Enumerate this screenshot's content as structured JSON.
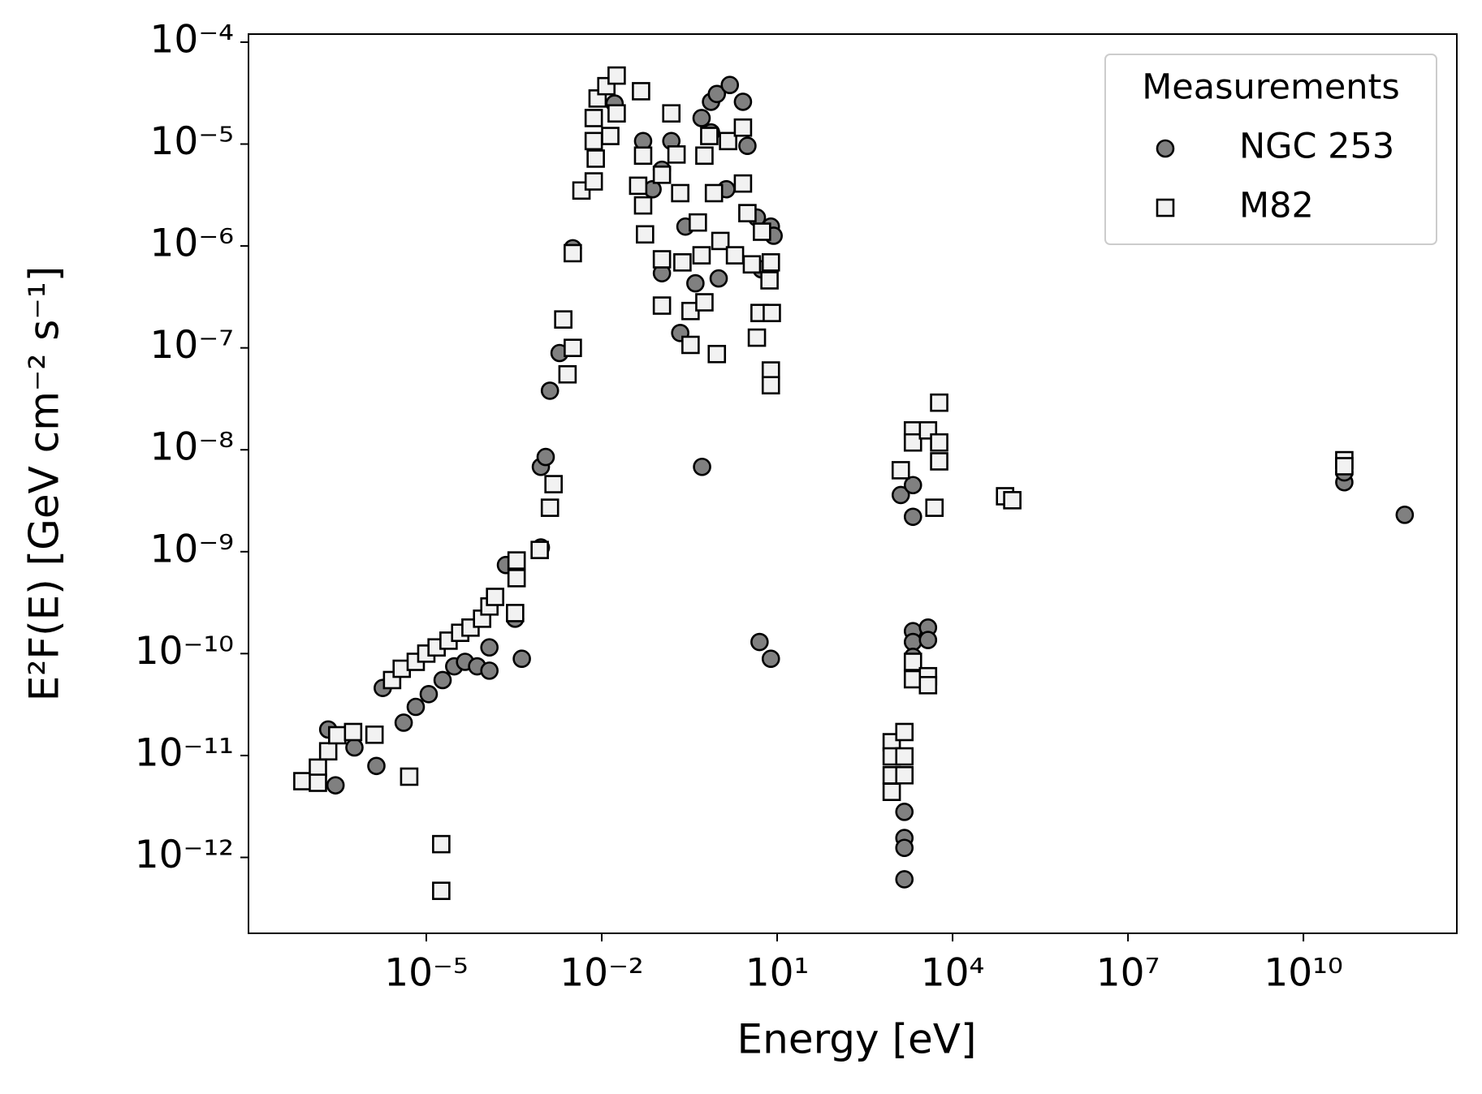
{
  "chart_data": {
    "type": "scatter",
    "xlabel": "Energy [eV]",
    "ylabel": "E²F(E) [GeV cm⁻² s⁻¹]",
    "xscale": "log",
    "yscale": "log",
    "xlim": [
      9.1e-09,
      4200000000000.0
    ],
    "ylim": [
      1.8e-13,
      0.00012
    ],
    "xticks": [
      {
        "value": 1e-05,
        "label": "10⁻⁵"
      },
      {
        "value": 0.01,
        "label": "10⁻²"
      },
      {
        "value": 10,
        "label": "10¹"
      },
      {
        "value": 10000.0,
        "label": "10⁴"
      },
      {
        "value": 10000000.0,
        "label": "10⁷"
      },
      {
        "value": 10000000000.0,
        "label": "10¹⁰"
      }
    ],
    "yticks": [
      {
        "value": 1e-12,
        "label": "10⁻¹²"
      },
      {
        "value": 1e-11,
        "label": "10⁻¹¹"
      },
      {
        "value": 1e-10,
        "label": "10⁻¹⁰"
      },
      {
        "value": 1e-09,
        "label": "10⁻⁹"
      },
      {
        "value": 1e-08,
        "label": "10⁻⁸"
      },
      {
        "value": 1e-07,
        "label": "10⁻⁷"
      },
      {
        "value": 1e-06,
        "label": "10⁻⁶"
      },
      {
        "value": 1e-05,
        "label": "10⁻⁵"
      },
      {
        "value": 0.0001,
        "label": "10⁻⁴"
      }
    ],
    "legend": "upper right",
    "legend_title": "Measurements",
    "series": [
      {
        "name": "NGC 253",
        "marker": "circle",
        "color": "#808080",
        "x": [
          2.1e-07,
          2.8e-07,
          5.9e-07,
          1.4e-06,
          1.8e-06,
          4.1e-06,
          6.6e-06,
          1.1e-05,
          1.9e-05,
          3e-05,
          4.6e-05,
          7.4e-05,
          0.00012,
          0.00012,
          0.00023,
          0.00033,
          0.00043,
          0.00091,
          0.00091,
          0.0011,
          0.0013,
          0.0019,
          0.0032,
          0.051,
          0.074,
          0.107,
          0.155,
          0.22,
          0.27,
          0.51,
          0.52,
          0.74,
          0.93,
          1.55,
          2.6,
          1.0,
          1.35,
          3.1,
          4.5,
          5.4,
          7.8,
          8.7,
          5.0,
          7.8,
          0.107,
          0.0166,
          0.4,
          0.74,
          1300,
          2100,
          2100,
          1500,
          1500,
          1500,
          1500,
          2100,
          3800,
          2100,
          2100,
          3800,
          50000000000.0,
          50000000000.0,
          540000000000.0
        ],
        "values": [
          1.8e-11,
          5.1e-12,
          1.2e-11,
          7.9e-12,
          4.6e-11,
          2.1e-11,
          3e-11,
          4e-11,
          5.5e-11,
          7.5e-11,
          8.3e-11,
          7.5e-11,
          6.8e-11,
          1.15e-10,
          7.4e-10,
          2.2e-10,
          8.9e-11,
          1.1e-09,
          6.8e-09,
          8.5e-09,
          3.8e-08,
          8.9e-08,
          9.5e-07,
          1.07e-05,
          3.6e-06,
          5.4e-07,
          1.07e-05,
          1.4e-07,
          1.55e-06,
          1.8e-05,
          6.8e-09,
          2.6e-05,
          3.1e-05,
          3.8e-05,
          2.6e-05,
          4.8e-07,
          3.6e-06,
          9.6e-06,
          1.9e-06,
          5.9e-07,
          1.55e-06,
          1.26e-06,
          1.3e-10,
          8.9e-11,
          5.6e-06,
          2.5e-05,
          4.3e-07,
          1.3e-05,
          3.6e-09,
          4.5e-09,
          2.2e-09,
          2.8e-12,
          1.55e-12,
          1.24e-12,
          6.1e-13,
          1.66e-10,
          1.8e-10,
          1.3e-10,
          9.3e-11,
          1.36e-10,
          4.8e-09,
          6e-09,
          2.3e-09
        ]
      },
      {
        "name": "M82",
        "marker": "square",
        "color": "#f2f2f2",
        "x": [
          7.6e-08,
          1.4e-07,
          1.4e-07,
          2.1e-07,
          3e-07,
          5.6e-07,
          1.3e-06,
          2.6e-06,
          3.8e-06,
          5.1e-06,
          6.6e-06,
          1e-05,
          1.5e-05,
          1.8e-05,
          1.8e-05,
          2.4e-05,
          3.8e-05,
          5.7e-05,
          9e-05,
          0.00012,
          0.00015,
          0.00033,
          0.00035,
          0.00035,
          0.00087,
          0.0013,
          0.0015,
          0.0026,
          0.0022,
          0.0032,
          0.0032,
          0.0045,
          0.0073,
          0.0079,
          0.0073,
          0.0073,
          0.0085,
          0.014,
          0.012,
          0.018,
          0.018,
          0.047,
          0.042,
          0.051,
          0.051,
          0.055,
          0.107,
          0.107,
          0.107,
          0.155,
          0.19,
          0.22,
          0.24,
          0.33,
          0.33,
          0.44,
          0.51,
          0.57,
          0.57,
          0.69,
          0.83,
          0.93,
          1.07,
          1.45,
          1.9,
          2.6,
          2.6,
          3.1,
          3.7,
          4.5,
          5.0,
          5.5,
          7.4,
          7.8,
          7.8,
          8.1,
          7.8,
          1300,
          2100,
          2100,
          3800,
          5900,
          5900,
          5900,
          4900,
          910,
          910,
          910,
          910,
          1500,
          1500,
          1500,
          2100,
          2100,
          3800,
          3800,
          79000.0,
          105000.0,
          50000000000.0,
          50000000000.0
        ],
        "values": [
          5.6e-12,
          7.6e-12,
          5.4e-12,
          1.1e-11,
          1.58e-11,
          1.7e-11,
          1.6e-11,
          5.5e-11,
          7.1e-11,
          6.2e-12,
          8.3e-11,
          1e-10,
          1.15e-10,
          1.35e-12,
          4.7e-13,
          1.34e-10,
          1.6e-10,
          1.8e-10,
          2.2e-10,
          2.9e-10,
          3.6e-10,
          2.5e-10,
          5.5e-10,
          8.2e-10,
          1.04e-09,
          2.7e-09,
          4.6e-09,
          5.5e-08,
          1.9e-07,
          1e-07,
          8.5e-07,
          3.5e-06,
          4.3e-06,
          7.2e-06,
          1.07e-05,
          1.8e-05,
          2.8e-05,
          1.2e-05,
          3.7e-05,
          4.7e-05,
          2e-05,
          3.3e-05,
          3.9e-06,
          7.7e-06,
          2.5e-06,
          1.3e-06,
          7.4e-07,
          2.6e-07,
          5e-06,
          2e-05,
          7.9e-06,
          3.3e-06,
          6.9e-07,
          2.3e-07,
          1.07e-07,
          1.7e-06,
          8.1e-07,
          7.7e-06,
          2.8e-07,
          1.2e-05,
          3.3e-06,
          8.7e-08,
          1.12e-06,
          1.07e-05,
          8.1e-07,
          1.45e-05,
          4.1e-06,
          2.1e-06,
          6.6e-07,
          1.26e-07,
          2.2e-07,
          1.38e-06,
          4.6e-07,
          6e-08,
          4.3e-08,
          2.2e-07,
          6.9e-07,
          6.3e-09,
          1.55e-08,
          1.18e-08,
          1.55e-08,
          2.9e-08,
          1.18e-08,
          7.7e-09,
          2.7e-09,
          1.35e-11,
          9.8e-12,
          6.4e-12,
          4.4e-12,
          1.7e-11,
          9.8e-12,
          6.4e-12,
          8.3e-11,
          5.6e-11,
          6e-11,
          4.9e-11,
          3.5e-09,
          3.2e-09,
          7.9e-09,
          6.9e-09
        ]
      }
    ]
  }
}
